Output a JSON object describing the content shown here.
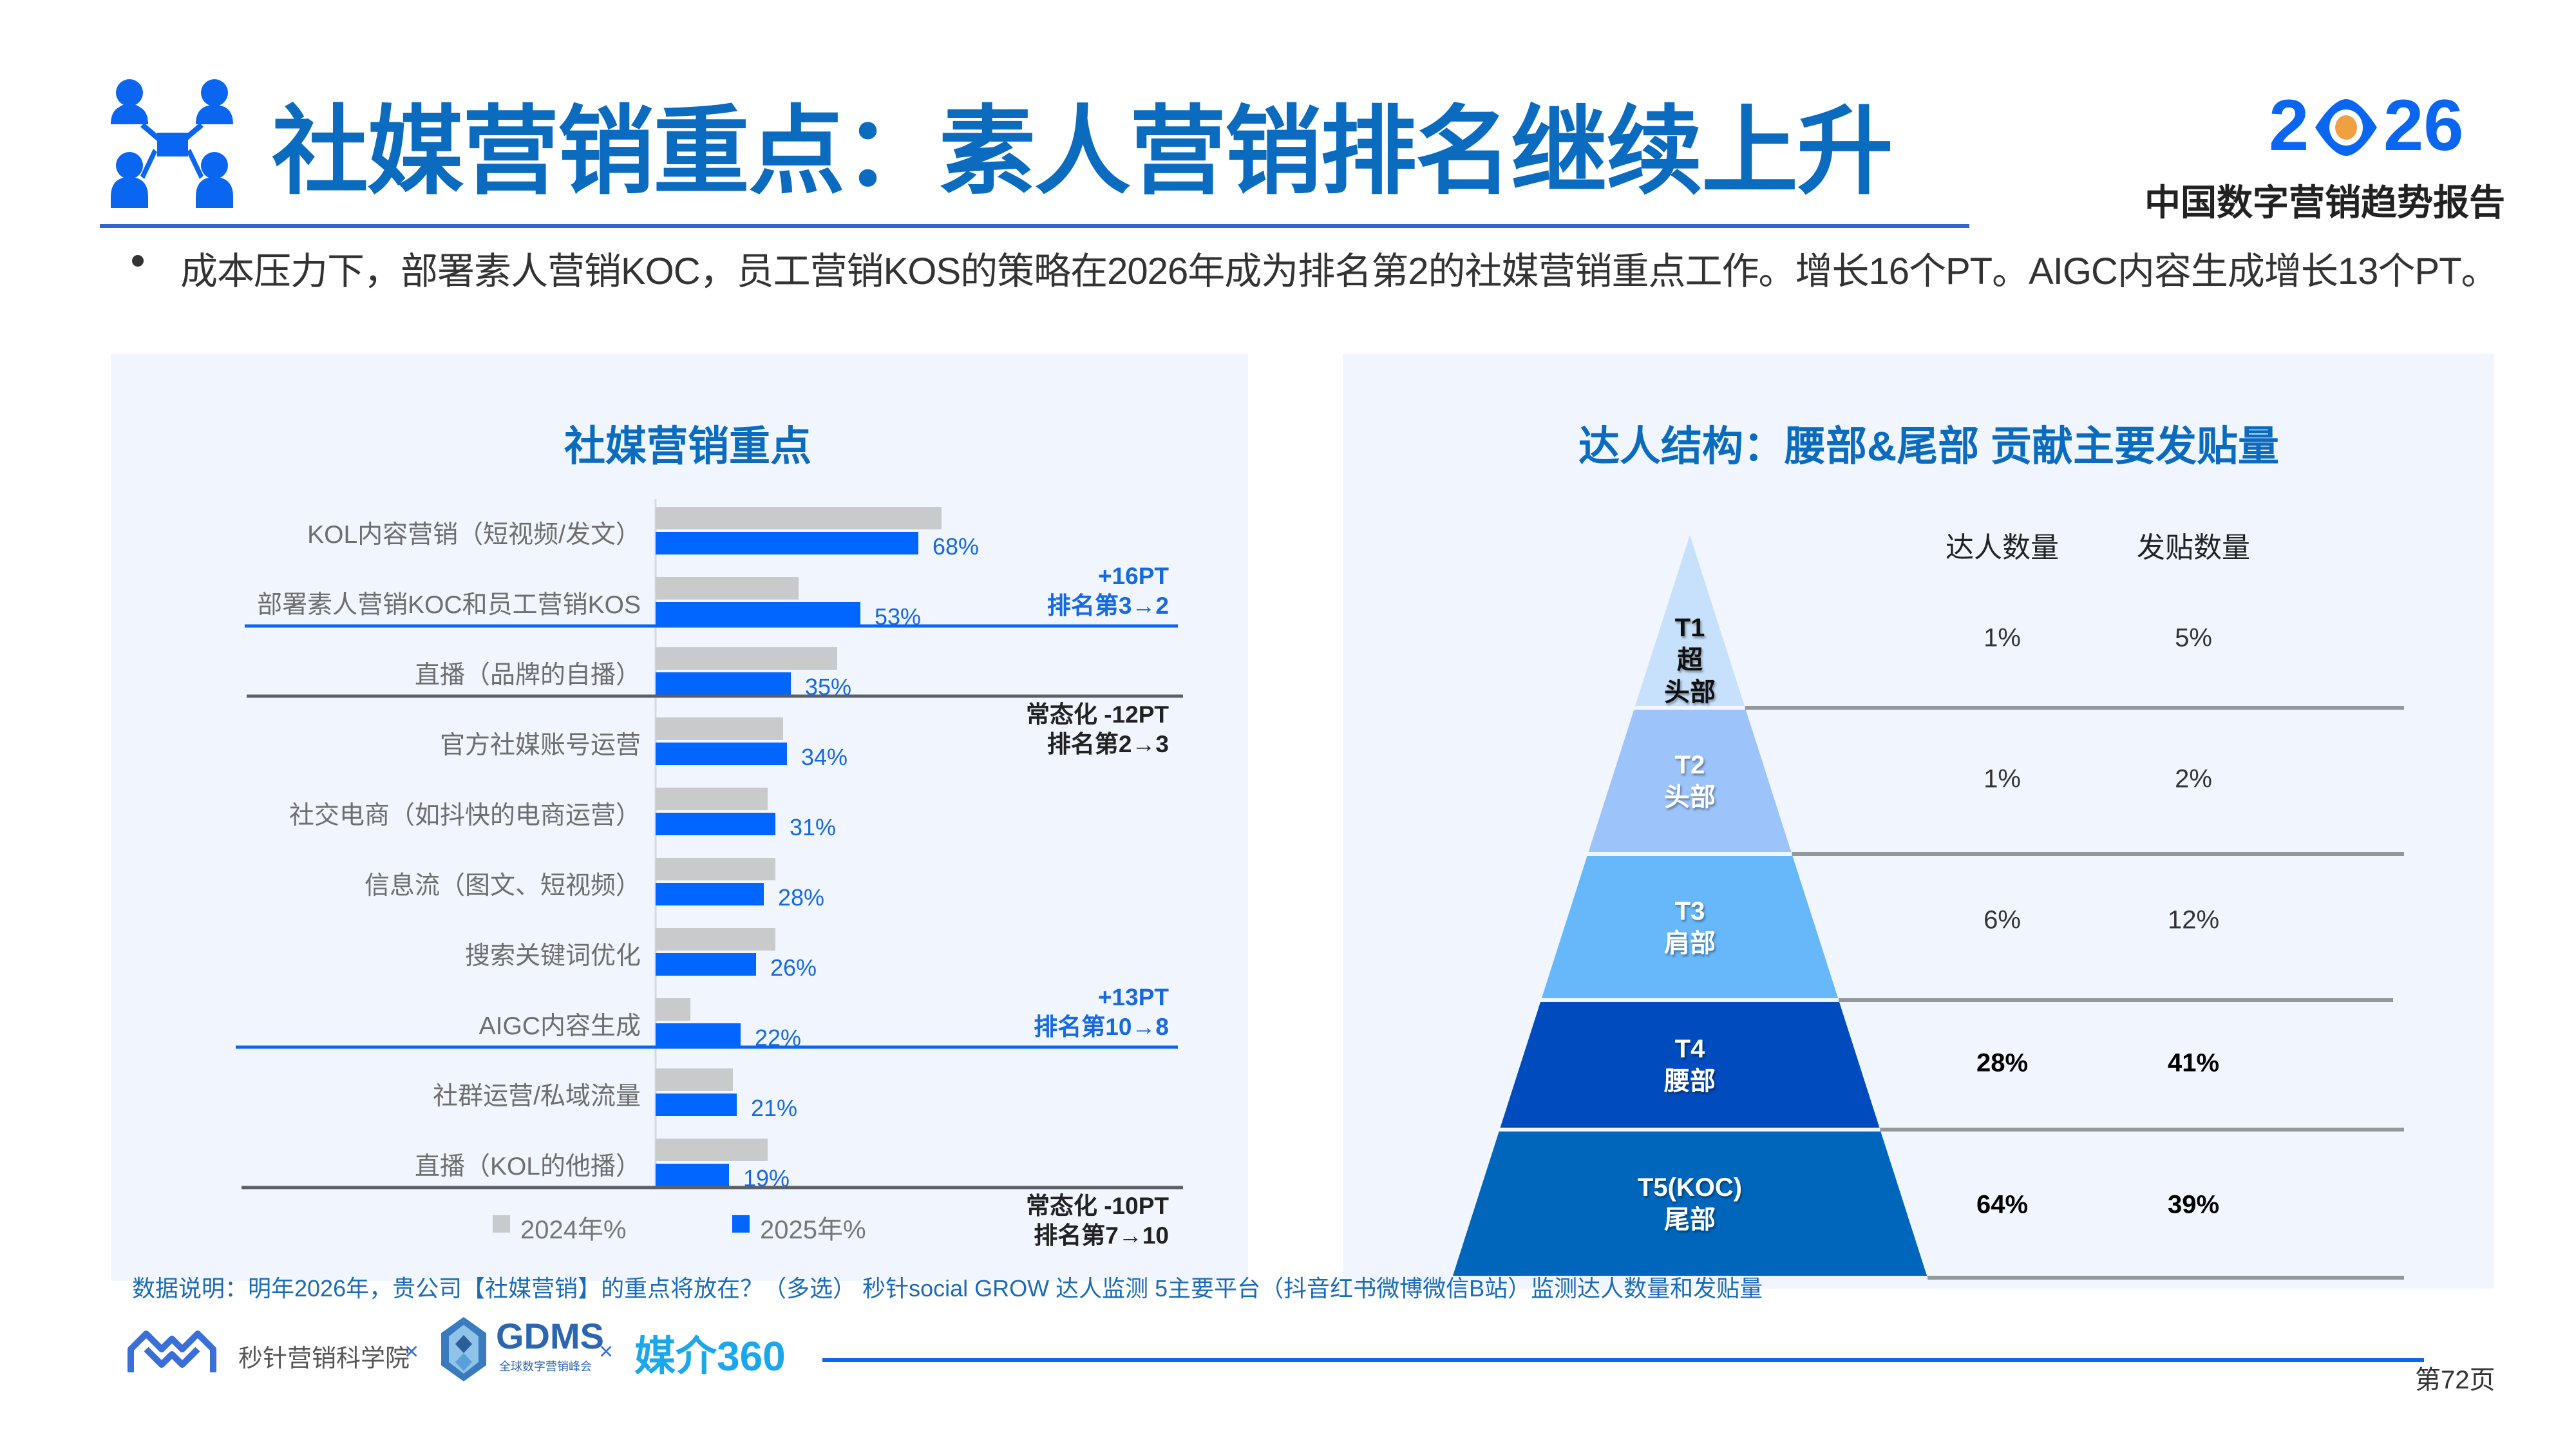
{
  "header": {
    "title": "社媒营销重点：素人营销排名继续上升",
    "brand_year_left": "2",
    "brand_year_right": "26",
    "brand_subtitle": "中国数字营销趋势报告",
    "bullet": "成本压力下，部署素人营销KOC，员工营销KOS的策略在2026年成为排名第2的社媒营销重点工作。增长16个PT。AIGC内容生成增长13个PT。"
  },
  "colors": {
    "title_blue": "#0a6bbf",
    "bar_2025": "#0066ff",
    "bar_2024": "#c8cacc",
    "tier1": "#c7e0fb",
    "tier2": "#9cc3fa",
    "tier3": "#66b8fa",
    "tier4": "#004bbd",
    "tier5": "#0066bb"
  },
  "chart_data": [
    {
      "type": "bar",
      "orientation": "horizontal",
      "title": "社媒营销重点",
      "categories": [
        "KOL内容营销（短视频/发文）",
        "部署素人营销KOC和员工营销KOS",
        "直播（品牌的自播）",
        "官方社媒账号运营",
        "社交电商（如抖快的电商运营）",
        "信息流（图文、短视频）",
        "搜索关键词优化",
        "AIGC内容生成",
        "社群运营/私域流量",
        "直播（KOL的他播）"
      ],
      "series": [
        {
          "name": "2024年%",
          "values": [
            74,
            37,
            47,
            33,
            29,
            31,
            31,
            9,
            20,
            29
          ],
          "labeled": false
        },
        {
          "name": "2025年%",
          "values": [
            68,
            53,
            35,
            34,
            31,
            28,
            26,
            22,
            21,
            19
          ],
          "labeled": true
        }
      ],
      "value_labels": [
        "68%",
        "53%",
        "35%",
        "34%",
        "31%",
        "28%",
        "26%",
        "22%",
        "21%",
        "19%"
      ],
      "xlim": [
        0,
        100
      ],
      "legend": "bottom",
      "annotations": [
        {
          "line1": "+16PT",
          "line2": "排名第3→2",
          "style": "blue",
          "after_row": 1
        },
        {
          "line1": "常态化 -12PT",
          "line2": "排名第2→3",
          "style": "dark",
          "after_row": 2
        },
        {
          "line1": "+13PT",
          "line2": "排名第10→8",
          "style": "blue",
          "after_row": 7
        },
        {
          "line1": "常态化 -10PT",
          "line2": "排名第7→10",
          "style": "dark",
          "after_row": 9
        }
      ]
    },
    {
      "type": "table",
      "subtype": "pyramid",
      "title": "达人结构：腰部&尾部 贡献主要发贴量",
      "columns": [
        "达人数量",
        "发贴数量"
      ],
      "tiers": [
        {
          "code": "T1",
          "name": "超头部",
          "label_lines": [
            "T1",
            "超",
            "头部"
          ],
          "creators": "1%",
          "posts": "5%",
          "bold": false
        },
        {
          "code": "T2",
          "name": "头部",
          "label_lines": [
            "T2",
            "头部"
          ],
          "creators": "1%",
          "posts": "2%",
          "bold": false
        },
        {
          "code": "T3",
          "name": "肩部",
          "label_lines": [
            "T3",
            "肩部"
          ],
          "creators": "6%",
          "posts": "12%",
          "bold": false
        },
        {
          "code": "T4",
          "name": "腰部",
          "label_lines": [
            "T4",
            "腰部"
          ],
          "creators": "28%",
          "posts": "41%",
          "bold": true
        },
        {
          "code": "T5(KOC)",
          "name": "尾部",
          "label_lines": [
            "T5(KOC)",
            "尾部"
          ],
          "creators": "64%",
          "posts": "39%",
          "bold": true
        }
      ]
    }
  ],
  "footer": {
    "data_note": "数据说明：明年2026年，贵公司【社媒营销】的重点将放在？（多选）   秒针social  GROW 达人监测 5主要平台（抖音红书微博微信B站）监测达人数量和发贴量",
    "logo1_text": "秒针营销科学院",
    "times": "×",
    "logo2_text": "GDMS",
    "logo2_sub": "全球数字营销峰会",
    "logo3_text": "媒介360",
    "page_number": "第72页"
  }
}
